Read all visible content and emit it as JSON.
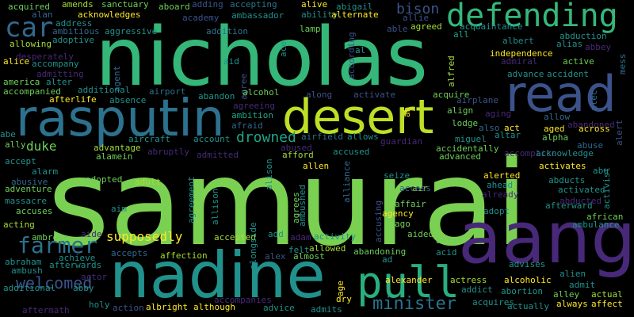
{
  "wordcloud": {
    "background": "#000000",
    "words": [
      {
        "text": "samurai",
        "color": "#7ad151"
      },
      {
        "text": "nicholas",
        "color": "#35b779"
      },
      {
        "text": "aang",
        "color": "#482878"
      },
      {
        "text": "nadine",
        "color": "#21918c"
      },
      {
        "text": "rasputin",
        "color": "#2c728e"
      },
      {
        "text": "desert",
        "color": "#bddf26"
      },
      {
        "text": "read",
        "color": "#3b528b"
      },
      {
        "text": "pull",
        "color": "#29af7f"
      },
      {
        "text": "defending",
        "color": "#35b779"
      },
      {
        "text": "car",
        "color": "#31688e"
      },
      {
        "text": "farmer",
        "color": "#2c728e"
      },
      {
        "text": "welcomed",
        "color": "#3b528b"
      },
      {
        "text": "minister",
        "color": "#2c728e"
      },
      {
        "text": "duke",
        "color": "#6ece58"
      },
      {
        "text": "drowned",
        "color": "#20a486"
      },
      {
        "text": "supposedly",
        "color": "#fde725"
      },
      {
        "text": "bison",
        "color": "#3b528b"
      },
      {
        "text": "acquired",
        "color": "#6ece58"
      },
      {
        "text": "amends",
        "color": "#a5db36"
      },
      {
        "text": "sanctuary",
        "color": "#6ece58"
      },
      {
        "text": "aboard",
        "color": "#6ece58"
      },
      {
        "text": "adding",
        "color": "#3b528b"
      },
      {
        "text": "accepting",
        "color": "#2c728e"
      },
      {
        "text": "alive",
        "color": "#fde725"
      },
      {
        "text": "abigail",
        "color": "#21918c"
      },
      {
        "text": "alan",
        "color": "#31688e"
      },
      {
        "text": "acknowledges",
        "color": "#fde725"
      },
      {
        "text": "academy",
        "color": "#3b528b"
      },
      {
        "text": "ambassador",
        "color": "#21918c"
      },
      {
        "text": "ability",
        "color": "#21918c"
      },
      {
        "text": "alternate",
        "color": "#fde725"
      },
      {
        "text": "allie",
        "color": "#3b528b"
      },
      {
        "text": "address",
        "color": "#21918c"
      },
      {
        "text": "aggressive",
        "color": "#21918c"
      },
      {
        "text": "addition",
        "color": "#2c728e"
      },
      {
        "text": "ace",
        "color": "#21918c"
      },
      {
        "text": "lamp",
        "color": "#6ece58"
      },
      {
        "text": "able",
        "color": "#3b528b"
      },
      {
        "text": "agreed",
        "color": "#a5db36"
      },
      {
        "text": "acquaintance",
        "color": "#21918c"
      },
      {
        "text": "ambitious",
        "color": "#31688e"
      },
      {
        "text": "all",
        "color": "#20a486"
      },
      {
        "text": "abduction",
        "color": "#21918c"
      },
      {
        "text": "albert",
        "color": "#21918c"
      },
      {
        "text": "alias",
        "color": "#21918c"
      },
      {
        "text": "abbey",
        "color": "#482878"
      },
      {
        "text": "mess",
        "color": "#2c728e"
      },
      {
        "text": "adoptive",
        "color": "#21918c"
      },
      {
        "text": "allowing",
        "color": "#a5db36"
      },
      {
        "text": "independence",
        "color": "#fde725"
      },
      {
        "text": "alice",
        "color": "#fde725"
      },
      {
        "text": "accompany",
        "color": "#21918c"
      },
      {
        "text": "aid",
        "color": "#21918c"
      },
      {
        "text": "according",
        "color": "#3b528b"
      },
      {
        "text": "al",
        "color": "#21918c"
      },
      {
        "text": "alfred",
        "color": "#a5db36"
      },
      {
        "text": "admiral",
        "color": "#482878"
      },
      {
        "text": "active",
        "color": "#6ece58"
      },
      {
        "text": "desperately",
        "color": "#482878"
      },
      {
        "text": "admitting",
        "color": "#482878"
      },
      {
        "text": "advance",
        "color": "#21918c"
      },
      {
        "text": "accident",
        "color": "#21918c"
      },
      {
        "text": "america",
        "color": "#6ece58"
      },
      {
        "text": "alter",
        "color": "#21918c"
      },
      {
        "text": "agent",
        "color": "#31688e"
      },
      {
        "text": "agree",
        "color": "#3b528b"
      },
      {
        "text": "accompanied",
        "color": "#6ece58"
      },
      {
        "text": "additional",
        "color": "#21918c"
      },
      {
        "text": "alcohol",
        "color": "#6ece58"
      },
      {
        "text": "along",
        "color": "#3b528b"
      },
      {
        "text": "activate",
        "color": "#3b528b"
      },
      {
        "text": "ah",
        "color": "#fde725"
      },
      {
        "text": "acquire",
        "color": "#6ece58"
      },
      {
        "text": "alec",
        "color": "#31688e"
      },
      {
        "text": "afterlife",
        "color": "#fde725"
      },
      {
        "text": "absence",
        "color": "#21918c"
      },
      {
        "text": "airport",
        "color": "#2c728e"
      },
      {
        "text": "abandon",
        "color": "#21918c"
      },
      {
        "text": "airplane",
        "color": "#3b528b"
      },
      {
        "text": "agreeing",
        "color": "#482878"
      },
      {
        "text": "ambition",
        "color": "#20a486"
      },
      {
        "text": "align",
        "color": "#6ece58"
      },
      {
        "text": "allow",
        "color": "#31688e"
      },
      {
        "text": "afraid",
        "color": "#31688e"
      },
      {
        "text": "lodge",
        "color": "#6ece58"
      },
      {
        "text": "aging",
        "color": "#482878"
      },
      {
        "text": "abandoned",
        "color": "#482878"
      },
      {
        "text": "abe",
        "color": "#21918c"
      },
      {
        "text": "aircraft",
        "color": "#21918c"
      },
      {
        "text": "account",
        "color": "#21918c"
      },
      {
        "text": "airfield",
        "color": "#2c728e"
      },
      {
        "text": "allows",
        "color": "#21918c"
      },
      {
        "text": "also",
        "color": "#31688e"
      },
      {
        "text": "act",
        "color": "#fde725"
      },
      {
        "text": "aged",
        "color": "#fde725"
      },
      {
        "text": "across",
        "color": "#fde725"
      },
      {
        "text": "alert",
        "color": "#3b528b"
      },
      {
        "text": "ally",
        "color": "#6ece58"
      },
      {
        "text": "advantage",
        "color": "#a5db36"
      },
      {
        "text": "abused",
        "color": "#482878"
      },
      {
        "text": "guardian",
        "color": "#482878"
      },
      {
        "text": "miguel",
        "color": "#21918c"
      },
      {
        "text": "altar",
        "color": "#21918c"
      },
      {
        "text": "alpha",
        "color": "#6ece58"
      },
      {
        "text": "abuse",
        "color": "#31688e"
      },
      {
        "text": "alamein",
        "color": "#6ece58"
      },
      {
        "text": "abruptly",
        "color": "#482878"
      },
      {
        "text": "admitted",
        "color": "#482878"
      },
      {
        "text": "afford",
        "color": "#a5db36"
      },
      {
        "text": "accused",
        "color": "#21918c"
      },
      {
        "text": "accidentally",
        "color": "#6ece58"
      },
      {
        "text": "accomplice",
        "color": "#482878"
      },
      {
        "text": "acknowledge",
        "color": "#21918c"
      },
      {
        "text": "accept",
        "color": "#21918c"
      },
      {
        "text": "advanced",
        "color": "#6ece58"
      },
      {
        "text": "alarm",
        "color": "#21918c"
      },
      {
        "text": "abusive",
        "color": "#31688e"
      },
      {
        "text": "allen",
        "color": "#fde725"
      },
      {
        "text": "seize",
        "color": "#21918c"
      },
      {
        "text": "activates",
        "color": "#fde725"
      },
      {
        "text": "abu",
        "color": "#21918c"
      },
      {
        "text": "alison",
        "color": "#21918c"
      },
      {
        "text": "air",
        "color": "#a5db36"
      },
      {
        "text": "abducts",
        "color": "#21918c"
      },
      {
        "text": "activist",
        "color": "#21918c"
      },
      {
        "text": "alerted",
        "color": "#fde725"
      },
      {
        "text": "ahead",
        "color": "#21918c"
      },
      {
        "text": "activated",
        "color": "#21918c"
      },
      {
        "text": "adventure",
        "color": "#6ece58"
      },
      {
        "text": "adopted",
        "color": "#6ece58"
      },
      {
        "text": "adult",
        "color": "#a5db36"
      },
      {
        "text": "alliance",
        "color": "#31688e"
      },
      {
        "text": "already",
        "color": "#482878"
      },
      {
        "text": "massacre",
        "color": "#21918c"
      },
      {
        "text": "access",
        "color": "#31688e"
      },
      {
        "text": "afterward",
        "color": "#21918c"
      },
      {
        "text": "accuses",
        "color": "#6ece58"
      },
      {
        "text": "aim",
        "color": "#21918c"
      },
      {
        "text": "agrees",
        "color": "#6ece58"
      },
      {
        "text": "ambushed",
        "color": "#21918c"
      },
      {
        "text": "affair",
        "color": "#6ece58"
      },
      {
        "text": "agency",
        "color": "#fde725"
      },
      {
        "text": "adopt",
        "color": "#21918c"
      },
      {
        "text": "abducted",
        "color": "#482878"
      },
      {
        "text": "african",
        "color": "#6ece58"
      },
      {
        "text": "acting",
        "color": "#a5db36"
      },
      {
        "text": "agreement",
        "color": "#21918c"
      },
      {
        "text": "allison",
        "color": "#21918c"
      },
      {
        "text": "ago",
        "color": "#6ece58"
      },
      {
        "text": "accusing",
        "color": "#3b528b"
      },
      {
        "text": "ambulance",
        "color": "#21918c"
      },
      {
        "text": "ambrose",
        "color": "#6ece58"
      },
      {
        "text": "aide",
        "color": "#482878"
      },
      {
        "text": "accepted",
        "color": "#a5db36"
      },
      {
        "text": "add",
        "color": "#21918c"
      },
      {
        "text": "adam",
        "color": "#482878"
      },
      {
        "text": "activity",
        "color": "#21918c"
      },
      {
        "text": "aided",
        "color": "#6ece58"
      },
      {
        "text": "aaron",
        "color": "#6ece58"
      },
      {
        "text": "abraham",
        "color": "#21918c"
      },
      {
        "text": "achieve",
        "color": "#21918c"
      },
      {
        "text": "accepts",
        "color": "#31688e"
      },
      {
        "text": "alongside",
        "color": "#21918c"
      },
      {
        "text": "felt",
        "color": "#21918c"
      },
      {
        "text": "allowed",
        "color": "#a5db36"
      },
      {
        "text": "acid",
        "color": "#21918c"
      },
      {
        "text": "ambush",
        "color": "#21918c"
      },
      {
        "text": "afterwards",
        "color": "#21918c"
      },
      {
        "text": "affection",
        "color": "#a5db36"
      },
      {
        "text": "alex",
        "color": "#3b528b"
      },
      {
        "text": "almost",
        "color": "#6ece58"
      },
      {
        "text": "abandoning",
        "color": "#6ece58"
      },
      {
        "text": "ad",
        "color": "#21918c"
      },
      {
        "text": "advises",
        "color": "#21918c"
      },
      {
        "text": "alien",
        "color": "#21918c"
      },
      {
        "text": "abby",
        "color": "#21918c"
      },
      {
        "text": "actor",
        "color": "#482878"
      },
      {
        "text": "age",
        "color": "#fde725"
      },
      {
        "text": "alexander",
        "color": "#fde725"
      },
      {
        "text": "actress",
        "color": "#a5db36"
      },
      {
        "text": "alcoholic",
        "color": "#fde725"
      },
      {
        "text": "admit",
        "color": "#21918c"
      },
      {
        "text": "additional",
        "color": "#21918c"
      },
      {
        "text": "addict",
        "color": "#21918c"
      },
      {
        "text": "abortion",
        "color": "#21918c"
      },
      {
        "text": "alley",
        "color": "#6ece58"
      },
      {
        "text": "actual",
        "color": "#a5db36"
      },
      {
        "text": "holy",
        "color": "#21918c"
      },
      {
        "text": "action",
        "color": "#3b528b"
      },
      {
        "text": "accompanies",
        "color": "#482878"
      },
      {
        "text": "dry",
        "color": "#fde725"
      },
      {
        "text": "acquires",
        "color": "#21918c"
      },
      {
        "text": "always",
        "color": "#fde725"
      },
      {
        "text": "affect",
        "color": "#fde725"
      },
      {
        "text": "aftermath",
        "color": "#482878"
      },
      {
        "text": "albright",
        "color": "#fde725"
      },
      {
        "text": "although",
        "color": "#fde725"
      },
      {
        "text": "advice",
        "color": "#21918c"
      },
      {
        "text": "admits",
        "color": "#21918c"
      },
      {
        "text": "actually",
        "color": "#21918c"
      }
    ]
  }
}
